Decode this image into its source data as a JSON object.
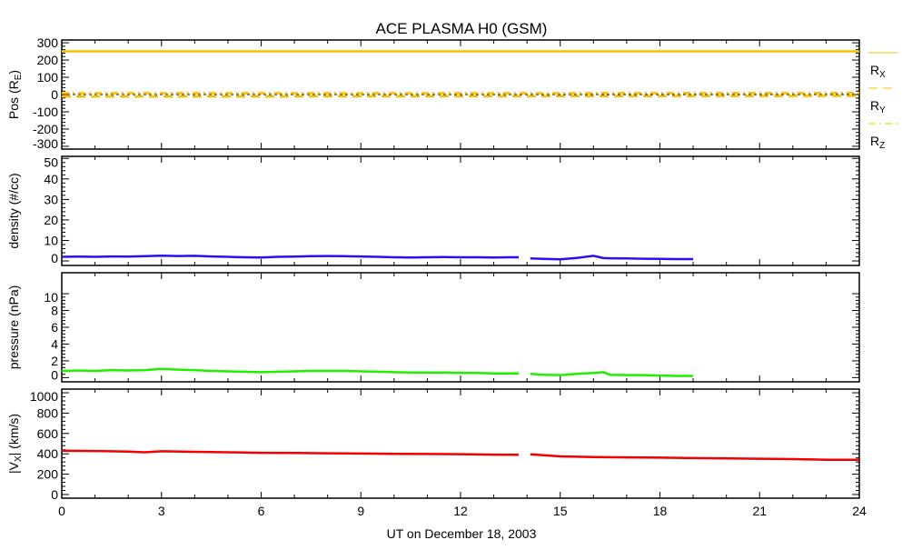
{
  "chart_data": {
    "type": "line",
    "title": "ACE PLASMA H0 (GSM)",
    "xlabel": "UT on December 18, 2003",
    "xlim": [
      0,
      24
    ],
    "xticks": [
      "0",
      "3",
      "6",
      "9",
      "12",
      "15",
      "18",
      "21",
      "24"
    ],
    "panels": [
      {
        "ylabel": "Pos (R",
        "ylabel_sub": "E",
        "ylabel_end": ")",
        "ylim": [
          -316,
          316
        ],
        "yticks": [
          -300,
          -200,
          -100,
          0,
          100,
          200,
          300
        ],
        "zero_line": true,
        "series": [
          {
            "name": "RX",
            "label_main": "R",
            "label_sub": "X",
            "color": "#f5c000",
            "dash": "solid",
            "x": [
              0,
              24
            ],
            "y": [
              250,
              250
            ]
          },
          {
            "name": "RY",
            "label_main": "R",
            "label_sub": "Y",
            "color": "#f5c000",
            "dash": "dash",
            "x": [
              0,
              12,
              24
            ],
            "y": [
              -12,
              -10,
              -8
            ]
          },
          {
            "name": "RZ",
            "label_main": "R",
            "label_sub": "Z",
            "color": "#f5c000",
            "dash": "dashdot",
            "x": [
              0,
              12,
              24
            ],
            "y": [
              8,
              8,
              9
            ]
          }
        ],
        "legend": "right"
      },
      {
        "ylabel": "density (#/cc)",
        "ylim": [
          -2.2,
          51
        ],
        "yticks": [
          0,
          10,
          20,
          30,
          40,
          50
        ],
        "series": [
          {
            "name": "density",
            "color": "#2a10f0",
            "dash": "solid",
            "x": [
              0,
              0.5,
              1,
              1.5,
              2,
              2.5,
              3,
              3.5,
              4,
              4.5,
              5,
              5.5,
              6,
              6.5,
              7,
              7.5,
              8,
              8.5,
              9,
              9.5,
              10,
              10.5,
              11,
              11.5,
              12,
              12.5,
              13,
              13.5,
              13.75,
              null,
              14.1,
              14.5,
              15,
              15.5,
              16,
              16.3,
              16.5,
              17,
              17.5,
              18,
              18.5,
              19
            ],
            "y": [
              2.0,
              2.1,
              2.0,
              2.2,
              2.1,
              2.3,
              2.6,
              2.4,
              2.5,
              2.2,
              2.0,
              1.8,
              1.7,
              2.0,
              2.1,
              2.3,
              2.4,
              2.3,
              2.2,
              2.0,
              1.8,
              1.7,
              1.8,
              1.9,
              1.8,
              1.8,
              1.7,
              1.8,
              1.8,
              null,
              1.2,
              1.0,
              0.8,
              1.5,
              2.5,
              1.4,
              1.3,
              1.2,
              1.1,
              1.0,
              0.9,
              0.9
            ]
          }
        ]
      },
      {
        "ylabel": "pressure (nPa)",
        "ylim": [
          -0.5,
          12.5
        ],
        "yticks": [
          0,
          2,
          4,
          6,
          8,
          10
        ],
        "series": [
          {
            "name": "pressure",
            "color": "#20f000",
            "dash": "solid",
            "x": [
              0,
              0.5,
              1,
              1.5,
              2,
              2.5,
              3,
              3.5,
              4,
              4.5,
              5,
              5.5,
              6,
              6.5,
              7,
              7.5,
              8,
              8.5,
              9,
              9.5,
              10,
              10.5,
              11,
              11.5,
              12,
              12.5,
              13,
              13.5,
              13.75,
              null,
              14.1,
              14.5,
              15,
              15.5,
              16,
              16.3,
              16.5,
              17,
              17.5,
              18,
              18.5,
              19
            ],
            "y": [
              0.8,
              0.85,
              0.8,
              0.9,
              0.85,
              0.9,
              1.05,
              0.95,
              0.9,
              0.8,
              0.75,
              0.7,
              0.65,
              0.7,
              0.75,
              0.8,
              0.8,
              0.8,
              0.75,
              0.7,
              0.65,
              0.6,
              0.6,
              0.6,
              0.55,
              0.55,
              0.5,
              0.5,
              0.5,
              null,
              0.45,
              0.35,
              0.3,
              0.45,
              0.55,
              0.65,
              0.35,
              0.3,
              0.3,
              0.25,
              0.2,
              0.2
            ]
          }
        ]
      },
      {
        "ylabel": "|V",
        "ylabel_sub": "X",
        "ylabel_end": "| (km/s)",
        "ylim": [
          -36,
          1036
        ],
        "yticks": [
          0,
          200,
          400,
          600,
          800,
          1000
        ],
        "series": [
          {
            "name": "vx",
            "color": "#f00000",
            "dash": "solid",
            "x": [
              0,
              1,
              2,
              2.5,
              3,
              4,
              5,
              6,
              7,
              8,
              9,
              10,
              11,
              12,
              13,
              13.75,
              null,
              14.1,
              15,
              16,
              17,
              18,
              19,
              20,
              21,
              22,
              23,
              24
            ],
            "y": [
              430,
              428,
              422,
              415,
              425,
              420,
              415,
              410,
              408,
              405,
              403,
              400,
              398,
              396,
              392,
              390,
              null,
              395,
              375,
              368,
              365,
              362,
              358,
              355,
              352,
              348,
              342,
              342
            ]
          }
        ]
      }
    ]
  }
}
